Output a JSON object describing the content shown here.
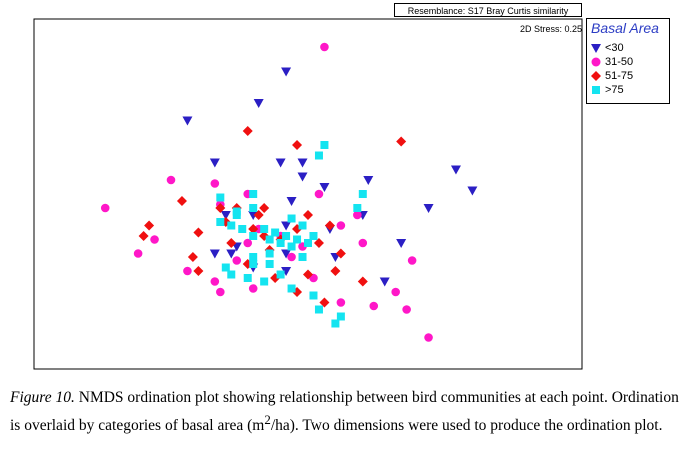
{
  "header": {
    "resemblance": "Resemblance: S17 Bray Curtis similarity",
    "stress": "2D Stress: 0.25"
  },
  "legend": {
    "title": "Basal Area",
    "items": [
      {
        "label": "<30",
        "color": "#2b1fc4",
        "shape": "triangle-down"
      },
      {
        "label": "31-50",
        "color": "#ff17c8",
        "shape": "circle"
      },
      {
        "label": "51-75",
        "color": "#f01010",
        "shape": "diamond"
      },
      {
        "label": ">75",
        "color": "#14e4f0",
        "shape": "square"
      }
    ]
  },
  "caption": {
    "lead": "Figure 10.",
    "body": " NMDS ordination plot showing relationship between bird communities at each point. Ordination is overlaid by categories of basal area (m",
    "sup": "2",
    "tail": "/ha). Two dimensions were used to produce the ordination plot."
  },
  "chart_data": {
    "type": "scatter",
    "title": "",
    "xlabel": "",
    "ylabel": "",
    "grid": false,
    "axes_ticks": false,
    "legend_position": "top-right",
    "xlim": [
      0,
      100
    ],
    "ylim": [
      0,
      100
    ],
    "series": [
      {
        "name": "<30",
        "shape": "triangle-down",
        "color": "#2b1fc4",
        "points": [
          [
            46,
            85
          ],
          [
            41,
            76
          ],
          [
            28,
            71
          ],
          [
            33,
            59
          ],
          [
            45,
            59
          ],
          [
            49,
            59
          ],
          [
            77,
            57
          ],
          [
            61,
            54
          ],
          [
            80,
            51
          ],
          [
            35,
            44
          ],
          [
            40,
            44
          ],
          [
            33,
            33
          ],
          [
            37,
            35
          ],
          [
            47,
            48
          ],
          [
            54,
            40
          ],
          [
            46,
            41
          ],
          [
            46,
            33
          ],
          [
            49,
            55
          ],
          [
            53,
            52
          ],
          [
            67,
            36
          ],
          [
            64,
            25
          ],
          [
            55,
            32
          ],
          [
            46,
            28
          ],
          [
            36,
            33
          ],
          [
            40,
            29
          ],
          [
            60,
            44
          ],
          [
            72,
            46
          ]
        ]
      },
      {
        "name": "31-50",
        "color": "#ff17c8",
        "shape": "circle",
        "points": [
          [
            53,
            92
          ],
          [
            25,
            54
          ],
          [
            33,
            53
          ],
          [
            39,
            50
          ],
          [
            34,
            47
          ],
          [
            52,
            50
          ],
          [
            59,
            44
          ],
          [
            56,
            41
          ],
          [
            22,
            37
          ],
          [
            19,
            33
          ],
          [
            28,
            28
          ],
          [
            33,
            25
          ],
          [
            40,
            23
          ],
          [
            49,
            35
          ],
          [
            47,
            32
          ],
          [
            51,
            26
          ],
          [
            37,
            31
          ],
          [
            34,
            22
          ],
          [
            69,
            31
          ],
          [
            66,
            22
          ],
          [
            62,
            18
          ],
          [
            68,
            17
          ],
          [
            72,
            9
          ],
          [
            13,
            46
          ],
          [
            56,
            19
          ],
          [
            45,
            38
          ],
          [
            60,
            36
          ],
          [
            41,
            40
          ],
          [
            39,
            36
          ]
        ]
      },
      {
        "name": "51-75",
        "color": "#f01010",
        "shape": "diamond",
        "points": [
          [
            39,
            68
          ],
          [
            48,
            64
          ],
          [
            67,
            65
          ],
          [
            27,
            48
          ],
          [
            34,
            46
          ],
          [
            37,
            46
          ],
          [
            41,
            44
          ],
          [
            35,
            42
          ],
          [
            40,
            40
          ],
          [
            48,
            40
          ],
          [
            50,
            44
          ],
          [
            54,
            41
          ],
          [
            42,
            38
          ],
          [
            45,
            37
          ],
          [
            21,
            41
          ],
          [
            20,
            38
          ],
          [
            36,
            36
          ],
          [
            43,
            34
          ],
          [
            52,
            36
          ],
          [
            56,
            33
          ],
          [
            29,
            32
          ],
          [
            30,
            28
          ],
          [
            39,
            30
          ],
          [
            44,
            26
          ],
          [
            50,
            27
          ],
          [
            55,
            28
          ],
          [
            60,
            25
          ],
          [
            48,
            22
          ],
          [
            53,
            19
          ],
          [
            30,
            39
          ],
          [
            42,
            46
          ]
        ]
      },
      {
        "name": ">75",
        "color": "#14e4f0",
        "shape": "square",
        "points": [
          [
            53,
            64
          ],
          [
            52,
            61
          ],
          [
            34,
            42
          ],
          [
            36,
            41
          ],
          [
            37,
            44
          ],
          [
            40,
            38
          ],
          [
            42,
            40
          ],
          [
            43,
            37
          ],
          [
            44,
            39
          ],
          [
            45,
            36
          ],
          [
            46,
            38
          ],
          [
            47,
            35
          ],
          [
            48,
            37
          ],
          [
            50,
            36
          ],
          [
            51,
            38
          ],
          [
            34,
            49
          ],
          [
            37,
            45
          ],
          [
            40,
            46
          ],
          [
            40,
            30
          ],
          [
            39,
            26
          ],
          [
            43,
            33
          ],
          [
            42,
            25
          ],
          [
            35,
            29
          ],
          [
            40,
            32
          ],
          [
            43,
            30
          ],
          [
            45,
            27
          ],
          [
            47,
            23
          ],
          [
            51,
            21
          ],
          [
            52,
            17
          ],
          [
            60,
            50
          ],
          [
            59,
            46
          ],
          [
            38,
            40
          ],
          [
            49,
            41
          ],
          [
            55,
            13
          ],
          [
            40,
            50
          ],
          [
            49,
            32
          ],
          [
            56,
            15
          ],
          [
            36,
            27
          ],
          [
            47,
            43
          ]
        ]
      }
    ]
  }
}
